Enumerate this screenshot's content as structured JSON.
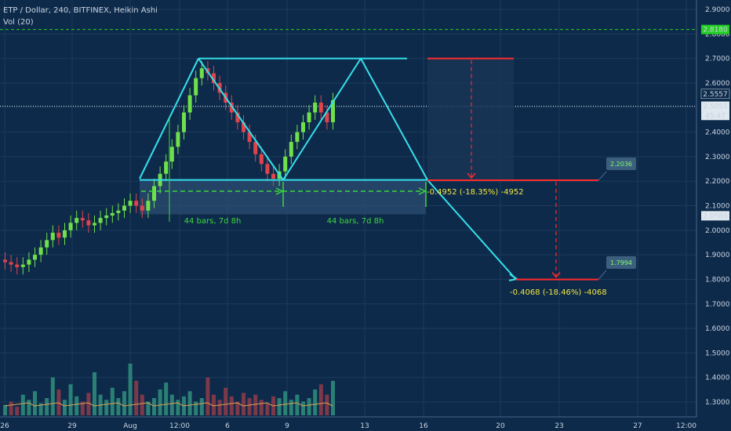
{
  "header": {
    "symbol_line": "ETP / Dollar, 240, BITFINEX, Heikin Ashi",
    "volume_line": "Vol (20)"
  },
  "colors": {
    "background": "#0e2a4a",
    "grid": "#1d3a5c",
    "bull": "#6fe04a",
    "bear": "#e0434b",
    "pattern": "#35e0ea",
    "target": "#ff2a2a",
    "measure": "#3bd83b",
    "annotation_text": "#f2e640",
    "alert_line": "#22d022"
  },
  "chart_data": {
    "type": "candlestick",
    "y_ticks": [
      "2.9000",
      "2.8000",
      "2.7000",
      "2.6000",
      "2.5000",
      "2.4000",
      "2.3000",
      "2.2000",
      "2.1000",
      "2.0000",
      "1.9000",
      "1.8000",
      "1.7000",
      "1.6000",
      "1.5000",
      "1.4000",
      "1.3000"
    ],
    "x_ticks": [
      "26",
      "29",
      "Aug",
      "12:00",
      "6",
      "9",
      "13",
      "16",
      "20",
      "23",
      "27",
      "12:00"
    ],
    "ylim": [
      1.26,
      2.94
    ],
    "price_markers": [
      {
        "label": "2.8180",
        "value": 2.818,
        "kind": "alert"
      },
      {
        "label": "2.5557",
        "value": 2.5557,
        "kind": "dark"
      },
      {
        "label": "2.5055",
        "value": 2.5055,
        "kind": "light"
      },
      {
        "label": "45:47",
        "value": 2.468,
        "kind": "light"
      },
      {
        "label": "2.0589",
        "value": 2.0589,
        "kind": "light"
      }
    ],
    "candles_close_path": [
      1.87,
      1.86,
      1.85,
      1.86,
      1.88,
      1.9,
      1.93,
      1.96,
      1.99,
      1.97,
      2.0,
      2.03,
      2.05,
      2.04,
      2.02,
      2.03,
      2.05,
      2.06,
      2.07,
      2.08,
      2.1,
      2.12,
      2.1,
      2.08,
      2.12,
      2.18,
      2.23,
      2.28,
      2.34,
      2.4,
      2.48,
      2.55,
      2.62,
      2.66,
      2.64,
      2.6,
      2.56,
      2.52,
      2.48,
      2.44,
      2.4,
      2.36,
      2.31,
      2.27,
      2.23,
      2.21,
      2.24,
      2.3,
      2.36,
      2.4,
      2.44,
      2.48,
      2.52,
      2.48,
      2.44,
      2.53
    ],
    "volume_bars": [
      6,
      8,
      5,
      12,
      9,
      14,
      7,
      10,
      22,
      15,
      9,
      18,
      11,
      8,
      13,
      25,
      12,
      9,
      16,
      10,
      14,
      30,
      20,
      12,
      8,
      10,
      15,
      19,
      12,
      9,
      11,
      14,
      8,
      10,
      22,
      12,
      9,
      16,
      11,
      8,
      13,
      10,
      12,
      9,
      7,
      11,
      10,
      14,
      9,
      12,
      8,
      10,
      15,
      18,
      12,
      20
    ],
    "pattern_lines": {
      "top_level": 2.7,
      "neckline": 2.205,
      "target_1": 2.2036,
      "target_2": 1.7994
    },
    "target_labels": [
      "2.2036",
      "1.7994"
    ],
    "measure_labels": [
      "44 bars, 7d 8h",
      "44 bars, 7d 8h"
    ],
    "projection_labels": [
      "-0.4952 (-18.35%) -4952",
      "-0.4068 (-18.46%) -4068"
    ]
  }
}
